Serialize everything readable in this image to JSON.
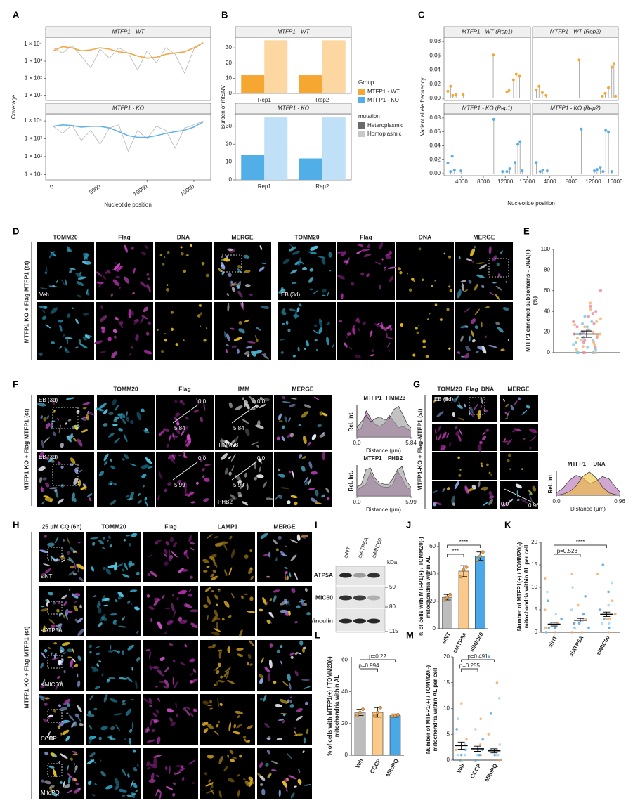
{
  "chart_data": [
    {
      "type": "line",
      "panel": "A",
      "title": "MTFP1 - WT",
      "ylabel": "Coverage",
      "log_y": true,
      "x": [
        0,
        1000,
        2000,
        3000,
        4000,
        5000,
        6000,
        7000,
        8000,
        9000,
        10000,
        11000,
        12000,
        13000,
        14000,
        15000,
        16000
      ],
      "series": [
        {
          "color": "#b5b5b5",
          "values": [
            6000,
            3000,
            8000,
            2000,
            400,
            5000,
            1500,
            6000,
            3000,
            300,
            4000,
            800,
            6000,
            2500,
            200,
            5000,
            12000
          ]
        },
        {
          "color": "#f0a848",
          "values": [
            4000,
            7000,
            6000,
            4000,
            4500,
            6000,
            5000,
            3500,
            3000,
            2000,
            1500,
            1700,
            2500,
            3000,
            3500,
            6000,
            12000
          ]
        }
      ],
      "xlim": [
        -800,
        16800
      ],
      "ylim": [
        5,
        25000
      ],
      "yticks": [
        {
          "value": 10,
          "label": "1 × 10¹"
        },
        {
          "value": 100,
          "label": "1 × 10²"
        },
        {
          "value": 1000,
          "label": "1 × 10³"
        },
        {
          "value": 10000,
          "label": "1 × 10⁴"
        }
      ]
    },
    {
      "type": "line",
      "title": "MTFP1 - KO",
      "xlabel": "Nucleotide position",
      "log_y": true,
      "x": [
        0,
        1000,
        2000,
        3000,
        4000,
        5000,
        6000,
        7000,
        8000,
        9000,
        10000,
        11000,
        12000,
        13000,
        14000,
        15000,
        16000
      ],
      "series": [
        {
          "color": "#b5b5b5",
          "values": [
            5000,
            2000,
            6000,
            800,
            3000,
            500,
            4000,
            6000,
            200,
            3000,
            1000,
            5000,
            3000,
            300,
            4000,
            6000,
            10000
          ]
        },
        {
          "color": "#64b2e4",
          "values": [
            5000,
            6000,
            5500,
            4500,
            5000,
            5000,
            4000,
            2500,
            1500,
            1200,
            1200,
            1500,
            2000,
            2500,
            3000,
            4500,
            9000
          ]
        }
      ],
      "xlim": [
        -800,
        16800
      ],
      "ylim": [
        5,
        25000
      ],
      "xticks": [
        0,
        5000,
        10000,
        15000
      ],
      "yticks": [
        {
          "value": 10,
          "label": "1 × 10¹"
        },
        {
          "value": 100,
          "label": "1 × 10²"
        },
        {
          "value": 1000,
          "label": "1 × 10³"
        },
        {
          "value": 10000,
          "label": "1 × 10⁴"
        }
      ]
    },
    {
      "type": "bar",
      "panel": "B",
      "title": "MTFP1 - WT",
      "ylabel": "Burden of mtSNV",
      "categories": [
        "Rep1",
        "Rep2"
      ],
      "series": [
        {
          "color": "#f5a732",
          "values": [
            12,
            12
          ]
        },
        {
          "color": "#fcd7a1",
          "values": [
            35,
            35
          ]
        }
      ],
      "ylim": [
        0,
        37
      ],
      "yticks": [
        0,
        10,
        20,
        30
      ]
    },
    {
      "type": "bar",
      "title": "MTFP1 - KO",
      "categories": [
        "Rep1",
        "Rep2"
      ],
      "series": [
        {
          "color": "#52aee6",
          "values": [
            14,
            12
          ]
        },
        {
          "color": "#bfe0f6",
          "values": [
            35,
            35
          ]
        }
      ],
      "ylim": [
        0,
        37
      ],
      "yticks": [
        0,
        10,
        20,
        30
      ]
    },
    {
      "type": "lollipop",
      "panel": "C",
      "title": "MTFP1 - WT (Rep1)",
      "ylabel": "Variant allele frequency",
      "color": "#f5a732",
      "x": [
        1500,
        2000,
        2400,
        3000,
        4300,
        9800,
        12300,
        12700,
        13500,
        14000,
        14600
      ],
      "values": [
        0.01,
        0.017,
        0.004,
        0.005,
        0.005,
        0.061,
        0.009,
        0.011,
        0.026,
        0.034,
        0.031
      ],
      "xlim": [
        800,
        16600
      ],
      "ylim": [
        -0.003,
        0.086
      ],
      "yticks": [
        {
          "value": 0,
          "label": "0.00"
        },
        0.02,
        0.04,
        0.06,
        0.08
      ]
    },
    {
      "type": "lollipop",
      "title": "MTFP1 - WT (Rep2)",
      "color": "#f5a732",
      "x": [
        1500,
        2000,
        2600,
        3300,
        9400,
        13700,
        14200,
        14800,
        15400,
        15800,
        16100
      ],
      "values": [
        0.012,
        0.017,
        0.008,
        0.004,
        0.054,
        0.003,
        0.007,
        0.015,
        0.044,
        0.049,
        0.003
      ],
      "xlim": [
        800,
        16600
      ],
      "ylim": [
        -0.003,
        0.086
      ]
    },
    {
      "type": "lollipop",
      "title": "MTFP1 - KO (Rep1)",
      "xlabel": "Nucleotide position",
      "color": "#5aaee3",
      "x": [
        1500,
        2000,
        2300,
        2700,
        3900,
        9900,
        11500,
        12300,
        12800,
        13800,
        14300,
        14700,
        15100
      ],
      "values": [
        0.015,
        0.003,
        0.025,
        0.005,
        0.004,
        0.078,
        0.003,
        0.003,
        0.007,
        0.016,
        0.042,
        0.046,
        0.004
      ],
      "xlim": [
        800,
        16600
      ],
      "ylim": [
        -0.003,
        0.086
      ],
      "yticks": [
        {
          "value": 0,
          "label": "0.00"
        },
        0.02,
        0.04,
        0.06,
        0.08
      ],
      "xticks": [
        4000,
        8000,
        12000,
        16000
      ]
    },
    {
      "type": "lollipop",
      "title": "MTFP1 - KO (Rep2)",
      "color": "#5aaee3",
      "x": [
        1500,
        2200,
        2700,
        3500,
        9800,
        12200,
        12700,
        13300,
        13800,
        14300,
        14800,
        15400
      ],
      "values": [
        0.016,
        0.003,
        0.005,
        0.004,
        0.064,
        0.004,
        0.006,
        0.009,
        0.003,
        0.062,
        0.06,
        0.003
      ],
      "xlim": [
        800,
        16600
      ],
      "ylim": [
        -0.003,
        0.086
      ],
      "xticks": [
        4000,
        8000,
        12000,
        16000
      ]
    },
    {
      "type": "dot",
      "panel": "E",
      "ylabel": [
        "MTFP1 enriched subdomains - DNA(+)",
        "(%)"
      ],
      "series": [
        {
          "color": "#e8859a",
          "values": [
            60,
            45,
            40,
            38,
            35,
            30,
            28,
            25,
            22,
            20,
            18,
            15,
            12,
            10,
            5,
            0,
            0
          ]
        },
        {
          "color": "#f4b26a",
          "values": [
            48,
            42,
            33,
            30,
            27,
            25,
            22,
            20,
            18,
            16,
            14,
            12,
            10,
            8,
            6,
            3,
            0,
            0
          ]
        },
        {
          "color": "#7fc3e8",
          "values": [
            35,
            30,
            28,
            25,
            22,
            20,
            18,
            15,
            12,
            10,
            8,
            5,
            3,
            0,
            0,
            0
          ]
        }
      ],
      "mean": 18,
      "error": 3,
      "ylim": [
        0,
        100
      ],
      "yticks": [
        0,
        20,
        40,
        60,
        80,
        100
      ]
    },
    {
      "type": "area",
      "ylabel": "Rel. Int.",
      "xlabel": "Distance (µm)",
      "x": [
        0,
        0.5,
        1,
        1.5,
        2,
        2.5,
        3,
        3.5,
        4,
        4.5,
        5,
        5.5,
        5.84
      ],
      "series": [
        {
          "name": "MTFP1",
          "color": "#a0509a",
          "values": [
            0.2,
            0.3,
            0.85,
            0.6,
            0.4,
            0.35,
            0.45,
            0.7,
            0.5,
            0.3,
            0.35,
            0.25,
            0.2
          ]
        },
        {
          "name": "TIMM23",
          "color": "#9a9a9a",
          "values": [
            0.3,
            0.5,
            0.7,
            0.5,
            0.6,
            0.65,
            0.55,
            0.6,
            0.9,
            1.0,
            0.7,
            0.4,
            0.3
          ]
        }
      ],
      "xlim": [
        0,
        5.84
      ],
      "ylim": [
        0,
        1.05
      ],
      "xticks": [
        {
          "value": 0,
          "label": "0.0"
        },
        5.84
      ]
    },
    {
      "type": "area",
      "ylabel": "Rel. Int.",
      "xlabel": "Distance (µm)",
      "x": [
        0,
        0.5,
        1,
        1.5,
        2,
        2.5,
        3,
        3.5,
        4,
        4.5,
        5,
        5.5,
        5.99
      ],
      "series": [
        {
          "name": "MTFP1",
          "color": "#a0509a",
          "values": [
            0.2,
            0.3,
            0.4,
            0.8,
            0.5,
            0.35,
            0.3,
            0.3,
            0.4,
            0.85,
            0.6,
            0.3,
            0.2
          ]
        },
        {
          "name": "PHB2",
          "color": "#9a9a9a",
          "values": [
            0.3,
            0.4,
            0.9,
            0.95,
            0.6,
            0.45,
            0.4,
            0.4,
            0.6,
            0.9,
            1.0,
            0.5,
            0.3
          ]
        }
      ],
      "xlim": [
        0,
        5.99
      ],
      "ylim": [
        0,
        1.05
      ],
      "xticks": [
        {
          "value": 0,
          "label": "0.0"
        },
        5.99
      ]
    },
    {
      "type": "area",
      "ylabel": "Rel. Int.",
      "xlabel": "Distance (µm)",
      "x": [
        0,
        0.1,
        0.2,
        0.3,
        0.4,
        0.5,
        0.6,
        0.7,
        0.8,
        0.9,
        0.96
      ],
      "series": [
        {
          "name": "MTFP1",
          "color": "#b36ab0",
          "values": [
            0.1,
            0.3,
            0.65,
            0.85,
            0.75,
            0.5,
            0.6,
            0.8,
            0.7,
            0.35,
            0.15
          ]
        },
        {
          "name": "DNA",
          "color": "#f2c037",
          "values": [
            0,
            0.05,
            0.15,
            0.4,
            0.8,
            1.0,
            0.75,
            0.35,
            0.1,
            0.03,
            0
          ]
        }
      ],
      "xlim": [
        0,
        0.96
      ],
      "ylim": [
        0,
        1.05
      ],
      "xticks": [
        {
          "value": 0,
          "label": "0.0"
        },
        0.96
      ]
    },
    {
      "type": "bar",
      "panel": "J",
      "ylabel": [
        "% of cells with MTFP1(+) / TOMM20(-)",
        "mitochondria within AL"
      ],
      "categories": [
        "siNT",
        "siATP5A",
        "siMIC60"
      ],
      "values": [
        23,
        42,
        53
      ],
      "errors": [
        2,
        4,
        3
      ],
      "colors": [
        "#bdbdbd",
        "#fbc98a",
        "#4aa8e8"
      ],
      "points": [
        [
          21,
          23,
          25
        ],
        [
          38,
          43,
          45
        ],
        [
          50,
          53,
          56
        ]
      ],
      "point_color": "#e89a3c",
      "ylim": [
        0,
        63
      ],
      "yticks": [
        0,
        20,
        40,
        60
      ],
      "comparisons": [
        {
          "pair": [
            "siNT",
            "siMIC60"
          ],
          "label": "****"
        },
        {
          "pair": [
            "siNT",
            "siATP5A"
          ],
          "label": "***"
        }
      ]
    },
    {
      "type": "strip",
      "panel": "K",
      "ylabel": [
        "Number of MTFP1(+) / TOMM20(-)",
        "mitochondria within AL per cell"
      ],
      "categories": [
        "siNT",
        "siATP5A",
        "siMIC60"
      ],
      "points": [
        [
          0,
          0,
          1,
          1,
          1,
          2,
          2,
          3,
          4,
          5,
          7,
          9,
          12,
          1,
          0
        ],
        [
          0,
          1,
          1,
          2,
          2,
          3,
          3,
          4,
          5,
          6,
          8,
          10,
          13,
          2,
          1,
          0
        ],
        [
          0,
          1,
          2,
          3,
          3,
          4,
          4,
          5,
          6,
          7,
          9,
          11,
          13,
          15,
          2,
          3
        ]
      ],
      "point_colors": [
        "#f0a45a",
        "#3f9ad8",
        "#9ccbe8"
      ],
      "means": [
        1.8,
        2.7,
        4.0
      ],
      "errors": [
        0.4,
        0.4,
        0.5
      ],
      "ylim": [
        0,
        20
      ],
      "yticks": [
        0,
        5,
        10,
        15,
        20
      ],
      "comparisons": [
        {
          "pair": [
            "siNT",
            "siMIC60"
          ],
          "label": "****"
        },
        {
          "pair": [
            "siNT",
            "siATP5A"
          ],
          "label": "p=0.523"
        }
      ]
    },
    {
      "type": "bar",
      "panel": "L",
      "ylabel": [
        "% of cells with MTFP1(+) / TOMM20(-)",
        "mitochondria within AL"
      ],
      "categories": [
        "Veh",
        "CCCP",
        "MitoPQ"
      ],
      "values": [
        27,
        27,
        25
      ],
      "errors": [
        2,
        3,
        1
      ],
      "colors": [
        "#bdbdbd",
        "#fbc98a",
        "#4aa8e8"
      ],
      "points": [
        [
          25,
          27,
          29
        ],
        [
          25,
          27,
          30
        ],
        [
          24.5,
          25,
          25.5
        ]
      ],
      "point_color": "#e89a3c",
      "ylim": [
        0,
        62
      ],
      "yticks": [
        0,
        20,
        40,
        60
      ],
      "comparisons": [
        {
          "pair": [
            "Veh",
            "MitoPQ"
          ],
          "label": "p=0.22"
        },
        {
          "pair": [
            "Veh",
            "CCCP"
          ],
          "label": "p=0.994"
        }
      ]
    },
    {
      "type": "strip",
      "panel": "M",
      "ylabel": [
        "Number of MTFP1(+) / TOMM20(-)",
        "mitochondria within AL per cell"
      ],
      "categories": [
        "Veh",
        "CCCP",
        "MitoPQ"
      ],
      "points": [
        [
          0,
          1,
          1,
          2,
          2,
          3,
          4,
          6,
          8,
          11,
          0,
          1
        ],
        [
          0,
          0,
          1,
          1,
          2,
          2,
          3,
          4,
          6,
          8,
          1
        ],
        [
          0,
          1,
          1,
          2,
          2,
          3,
          5,
          9,
          12,
          15,
          20,
          1
        ]
      ],
      "point_colors": [
        "#f0a45a",
        "#3f9ad8",
        "#9ccbe8"
      ],
      "means": [
        2.8,
        2.2,
        1.8
      ],
      "errors": [
        0.7,
        0.5,
        0.4
      ],
      "ylim": [
        0,
        20
      ],
      "yticks": [
        0,
        5,
        10,
        15,
        20
      ],
      "comparisons": [
        {
          "pair": [
            "Veh",
            "MitoPQ"
          ],
          "label": "p=0.491"
        },
        {
          "pair": [
            "Veh",
            "CCCP"
          ],
          "label": "p=0.255"
        }
      ]
    }
  ],
  "legend_b": {
    "group_title": "Group",
    "group": [
      {
        "label": "MTFP1 - WT",
        "color": "#f5a732"
      },
      {
        "label": "MTFP1 - KO",
        "color": "#52aee6"
      }
    ],
    "mutation_title": "mutation",
    "mutation": [
      {
        "label": "Heteroplasmic",
        "color": "#6a6a6a"
      },
      {
        "label": "Homoplasmic",
        "color": "#c8c8c8"
      }
    ]
  },
  "panel_d": {
    "letter": "D",
    "channels": [
      "TOMM20",
      "Flag",
      "DNA",
      "MERGE"
    ],
    "conditions": [
      "Veh",
      "EB (3d)"
    ],
    "side_label": "MTFP1-KO + Flag-MTFP1 (st)"
  },
  "panel_f": {
    "letter": "F",
    "condition": "EB (3d)",
    "channels": [
      "TOMM20",
      "Flag",
      "IMM",
      "MERGE"
    ],
    "markers": [
      "TIMM23",
      "PHB2"
    ],
    "line_ends": [
      [
        "0.0",
        "5.84"
      ],
      [
        "0.0",
        "5.99"
      ]
    ],
    "side_label": "MTFP1-KO + Flag-MTFP1 (st)"
  },
  "panel_g": {
    "letter": "G",
    "channels": [
      "TOMM20",
      "Flag",
      "DNA"
    ],
    "merge": "MERGE",
    "condition": "EB (3d)",
    "line_ends": [
      "0.0",
      "0.96"
    ],
    "side_label": "MTFP1-KO + Flag-MTFP1 (st)"
  },
  "panel_h": {
    "letter": "H",
    "treatment": "25 µM CQ (6h)",
    "channels": [
      "TOMM20",
      "Flag",
      "LAMP1",
      "MERGE"
    ],
    "rows": [
      "siNT",
      "siATP5A",
      "siMIC60",
      "CCCP",
      "MitoPQ"
    ],
    "side_label": "MTFP1-KO + Flag-MTFP1 (st)"
  },
  "panel_i": {
    "letter": "I",
    "lanes": [
      "siNT",
      "siATP5A",
      "siMIC60"
    ],
    "unit": "kDa",
    "bands": [
      "ATP5A",
      "MIC60",
      "Vinculin"
    ],
    "markers": [
      "50",
      "80",
      "115"
    ]
  }
}
